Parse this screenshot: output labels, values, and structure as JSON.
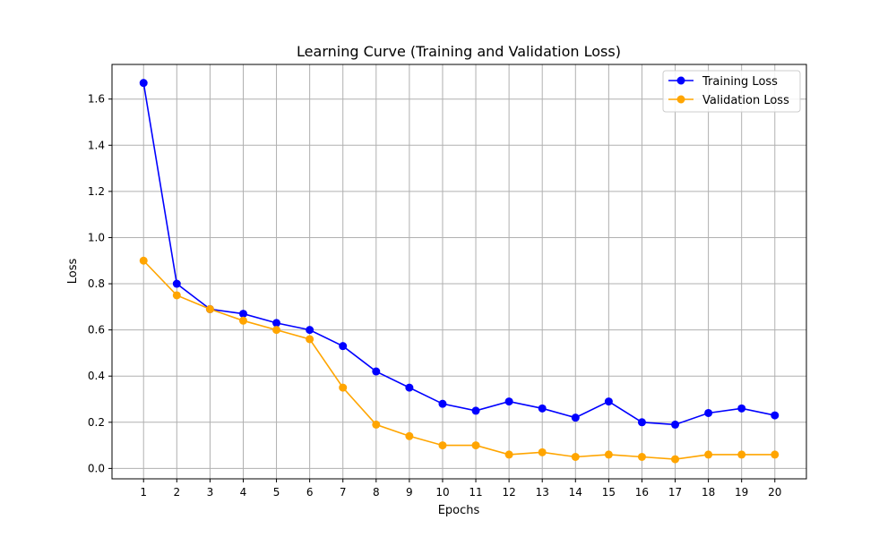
{
  "chart_data": {
    "type": "line",
    "title": "Learning Curve (Training and Validation Loss)",
    "xlabel": "Epochs",
    "ylabel": "Loss",
    "x": [
      1,
      2,
      3,
      4,
      5,
      6,
      7,
      8,
      9,
      10,
      11,
      12,
      13,
      14,
      15,
      16,
      17,
      18,
      19,
      20
    ],
    "xlim": [
      0.05,
      20.95
    ],
    "ylim": [
      -0.045,
      1.75
    ],
    "x_ticks": [
      "1",
      "2",
      "3",
      "4",
      "5",
      "6",
      "7",
      "8",
      "9",
      "10",
      "11",
      "12",
      "13",
      "14",
      "15",
      "16",
      "17",
      "18",
      "19",
      "20"
    ],
    "y_ticks": [
      0.0,
      0.2,
      0.4,
      0.6,
      0.8,
      1.0,
      1.2,
      1.4,
      1.6
    ],
    "y_tick_labels": [
      "0.0",
      "0.2",
      "0.4",
      "0.6",
      "0.8",
      "1.0",
      "1.2",
      "1.4",
      "1.6"
    ],
    "grid": true,
    "legend_position": "top-right",
    "series": [
      {
        "name": "Training Loss",
        "color": "#0000ff",
        "marker": "circle",
        "values": [
          1.67,
          0.8,
          0.69,
          0.67,
          0.63,
          0.6,
          0.53,
          0.42,
          0.35,
          0.28,
          0.25,
          0.29,
          0.26,
          0.22,
          0.29,
          0.2,
          0.19,
          0.24,
          0.26,
          0.23
        ]
      },
      {
        "name": "Validation Loss",
        "color": "#ffa500",
        "marker": "circle",
        "values": [
          0.9,
          0.75,
          0.69,
          0.64,
          0.6,
          0.56,
          0.35,
          0.19,
          0.14,
          0.1,
          0.1,
          0.06,
          0.07,
          0.05,
          0.06,
          0.05,
          0.04,
          0.06,
          0.06,
          0.06
        ]
      }
    ]
  }
}
